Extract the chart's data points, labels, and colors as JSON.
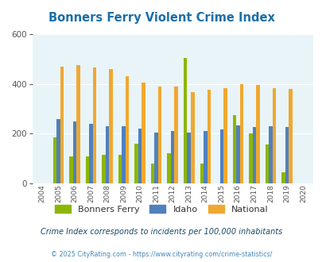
{
  "title": "Bonners Ferry Violent Crime Index",
  "years": [
    2004,
    2005,
    2006,
    2007,
    2008,
    2009,
    2010,
    2011,
    2012,
    2013,
    2014,
    2015,
    2016,
    2017,
    2018,
    2019,
    2020
  ],
  "bonners_ferry": [
    0,
    185,
    110,
    110,
    115,
    115,
    160,
    80,
    120,
    505,
    80,
    0,
    275,
    200,
    155,
    45,
    0
  ],
  "idaho": [
    0,
    258,
    248,
    240,
    230,
    230,
    220,
    204,
    210,
    205,
    212,
    218,
    232,
    228,
    230,
    226,
    0
  ],
  "national": [
    0,
    470,
    474,
    467,
    458,
    430,
    405,
    388,
    390,
    367,
    375,
    383,
    400,
    395,
    383,
    378,
    0
  ],
  "bonners_color": "#8db600",
  "idaho_color": "#4f81bd",
  "national_color": "#f0a830",
  "bg_color": "#e8f4f8",
  "ylim": [
    0,
    600
  ],
  "yticks": [
    0,
    200,
    400,
    600
  ],
  "subtitle": "Crime Index corresponds to incidents per 100,000 inhabitants",
  "footer": "© 2025 CityRating.com - https://www.cityrating.com/crime-statistics/",
  "title_color": "#1a6fa8",
  "subtitle_color": "#1a4a6b",
  "footer_color": "#4488bb"
}
